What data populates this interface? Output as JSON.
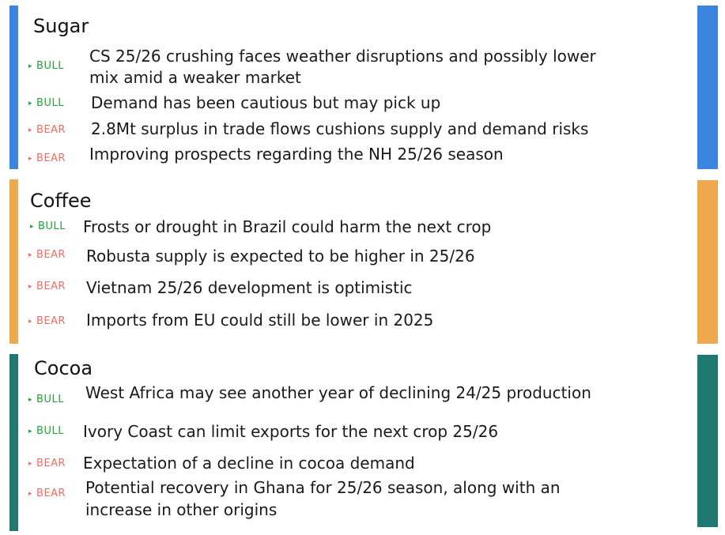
{
  "colors": {
    "sugar": "#3B84E0",
    "coffee": "#EDA94B",
    "cocoa": "#1E7A70",
    "bull": "#21A336",
    "bear": "#F26B61"
  },
  "sugar": {
    "title": "Sugar",
    "items": [
      {
        "tag": "BULL",
        "lines": [
          "CS 25/26 crushing faces weather disruptions and possibly lower",
          "mix amid a weaker market"
        ]
      },
      {
        "tag": "BULL",
        "lines": [
          "Demand has been cautious but may pick up"
        ]
      },
      {
        "tag": "BEAR",
        "lines": [
          "2.8Mt surplus in trade flows cushions supply and demand risks"
        ]
      },
      {
        "tag": "BEAR",
        "lines": [
          "Improving prospects regarding the NH 25/26 season"
        ]
      }
    ]
  },
  "coffee": {
    "title": "Coffee",
    "items": [
      {
        "tag": "BULL",
        "lines": [
          "Frosts or drought in Brazil could harm the next crop"
        ]
      },
      {
        "tag": "BEAR",
        "lines": [
          "Robusta supply is expected to be higher in 25/26"
        ]
      },
      {
        "tag": "BEAR",
        "lines": [
          "Vietnam 25/26 development is optimistic"
        ]
      },
      {
        "tag": "BEAR",
        "lines": [
          "Imports from EU could still be lower in 2025"
        ]
      }
    ]
  },
  "cocoa": {
    "title": "Cocoa",
    "items": [
      {
        "tag": "BULL",
        "lines": [
          "West Africa may see another year of declining 24/25 production"
        ]
      },
      {
        "tag": "BULL",
        "lines": [
          "Ivory Coast can limit exports for the next crop 25/26"
        ]
      },
      {
        "tag": "BEAR",
        "lines": [
          "Expectation of a decline in cocoa demand"
        ]
      },
      {
        "tag": "BEAR",
        "lines": [
          "Potential recovery in Ghana for 25/26 season, along with an",
          "increase in other origins"
        ]
      }
    ]
  }
}
